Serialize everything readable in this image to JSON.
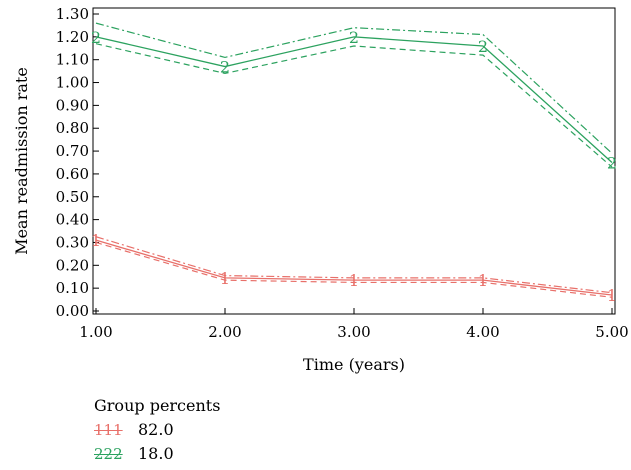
{
  "chart_data": {
    "type": "line",
    "ylabel": "Mean readmission rate",
    "xlabel": "Time (years)",
    "x": [
      1,
      2,
      3,
      4,
      5
    ],
    "x_tick_labels": [
      "1.00",
      "2.00",
      "3.00",
      "4.00",
      "5.00"
    ],
    "y_tick_labels": [
      "0.00",
      "0.10",
      "0.20",
      "0.30",
      "0.40",
      "0.50",
      "0.60",
      "0.70",
      "0.80",
      "0.90",
      "1.00",
      "1.10",
      "1.20",
      "1.30"
    ],
    "xlim": [
      1,
      5
    ],
    "ylim": [
      0,
      1.3
    ],
    "grid": false,
    "legend_placement": "bottom-left",
    "series": [
      {
        "name": "1",
        "marker": "1",
        "color": "#e8706a",
        "values": [
          0.31,
          0.145,
          0.135,
          0.135,
          0.07
        ],
        "upper": [
          0.325,
          0.155,
          0.145,
          0.145,
          0.08
        ],
        "lower": [
          0.3,
          0.135,
          0.125,
          0.125,
          0.06
        ]
      },
      {
        "name": "2",
        "marker": "2",
        "color": "#2ca25f",
        "values": [
          1.2,
          1.07,
          1.2,
          1.16,
          0.65
        ],
        "upper": [
          1.26,
          1.11,
          1.24,
          1.21,
          0.69
        ],
        "lower": [
          1.17,
          1.04,
          1.16,
          1.12,
          0.63
        ]
      }
    ]
  },
  "legend": {
    "title": "Group percents",
    "items": [
      {
        "marker": "111",
        "value": "82.0"
      },
      {
        "marker": "222",
        "value": "18.0"
      }
    ]
  }
}
